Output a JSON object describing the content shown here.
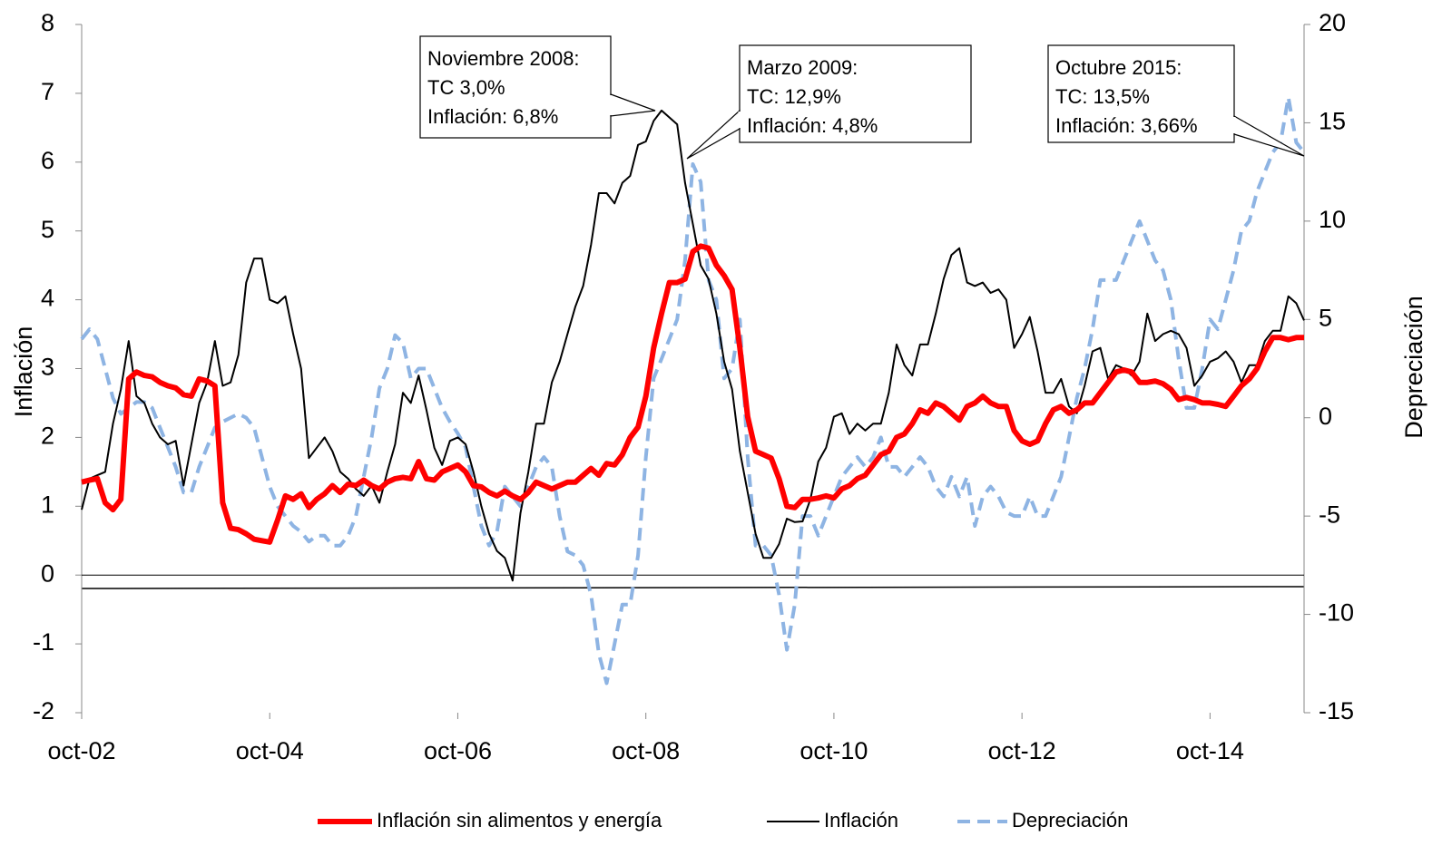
{
  "chart_data": {
    "type": "line",
    "y_label": "Inflación",
    "y2_label": "Depreciación",
    "categories": [
      "oct-02",
      null,
      null,
      null,
      null,
      null,
      null,
      null,
      null,
      null,
      null,
      null,
      null,
      null,
      null,
      null,
      null,
      null,
      null,
      null,
      null,
      null,
      null,
      null,
      "oct-04",
      null,
      null,
      null,
      null,
      null,
      null,
      null,
      null,
      null,
      null,
      null,
      null,
      null,
      null,
      null,
      null,
      null,
      null,
      null,
      null,
      null,
      null,
      null,
      "oct-06",
      null,
      null,
      null,
      null,
      null,
      null,
      null,
      null,
      null,
      null,
      null,
      null,
      null,
      null,
      null,
      null,
      null,
      null,
      null,
      null,
      null,
      null,
      null,
      "oct-08",
      null,
      null,
      null,
      null,
      null,
      null,
      null,
      null,
      null,
      null,
      null,
      null,
      null,
      null,
      null,
      null,
      null,
      null,
      null,
      null,
      null,
      null,
      null,
      "oct-10",
      null,
      null,
      null,
      null,
      null,
      null,
      null,
      null,
      null,
      null,
      null,
      null,
      null,
      null,
      null,
      null,
      null,
      null,
      null,
      null,
      null,
      null,
      null,
      "oct-12",
      null,
      null,
      null,
      null,
      null,
      null,
      null,
      null,
      null,
      null,
      null,
      null,
      null,
      null,
      null,
      null,
      null,
      null,
      null,
      null,
      null,
      null,
      null,
      "oct-14",
      null,
      null,
      null,
      null,
      null,
      null,
      null,
      null,
      null,
      null,
      null,
      null
    ],
    "ylim": [
      -2,
      8
    ],
    "yticks": [
      -2,
      -1,
      0,
      1,
      2,
      3,
      4,
      5,
      6,
      7,
      8
    ],
    "y2lim": [
      -15,
      20
    ],
    "y2ticks": [
      -15,
      -10,
      -5,
      0,
      5,
      10,
      15,
      20
    ],
    "series": [
      {
        "name": "Inflación sin alimentos y energía",
        "color": "#ff0000",
        "values": [
          1.35,
          1.38,
          1.4,
          1.05,
          0.95,
          1.1,
          2.85,
          2.95,
          2.9,
          2.88,
          2.8,
          2.75,
          2.72,
          2.62,
          2.6,
          2.85,
          2.82,
          2.75,
          1.05,
          0.68,
          0.66,
          0.6,
          0.52,
          0.5,
          0.48,
          0.8,
          1.15,
          1.1,
          1.18,
          0.98,
          1.1,
          1.18,
          1.3,
          1.2,
          1.32,
          1.3,
          1.38,
          1.3,
          1.25,
          1.35,
          1.4,
          1.42,
          1.4,
          1.65,
          1.4,
          1.38,
          1.5,
          1.55,
          1.6,
          1.5,
          1.3,
          1.28,
          1.2,
          1.15,
          1.22,
          1.15,
          1.1,
          1.2,
          1.35,
          1.3,
          1.25,
          1.3,
          1.35,
          1.35,
          1.45,
          1.55,
          1.45,
          1.62,
          1.6,
          1.75,
          2.0,
          2.15,
          2.6,
          3.3,
          3.8,
          4.25,
          4.25,
          4.3,
          4.7,
          4.78,
          4.75,
          4.5,
          4.35,
          4.15,
          3.3,
          2.3,
          1.8,
          1.75,
          1.7,
          1.4,
          1.0,
          0.98,
          1.1,
          1.1,
          1.12,
          1.15,
          1.12,
          1.25,
          1.3,
          1.4,
          1.45,
          1.6,
          1.75,
          1.8,
          2.0,
          2.05,
          2.2,
          2.4,
          2.35,
          2.5,
          2.45,
          2.35,
          2.25,
          2.45,
          2.5,
          2.6,
          2.5,
          2.45,
          2.45,
          2.1,
          1.95,
          1.9,
          1.95,
          2.2,
          2.4,
          2.45,
          2.35,
          2.4,
          2.5,
          2.5,
          2.65,
          2.8,
          2.95,
          2.98,
          2.95,
          2.8,
          2.8,
          2.82,
          2.78,
          2.7,
          2.55,
          2.58,
          2.55,
          2.5,
          2.5,
          2.48,
          2.45,
          2.6,
          2.75,
          2.85,
          3.0,
          3.25,
          3.45,
          3.45,
          3.42,
          3.45,
          3.45
        ]
      },
      {
        "name": "Inflación",
        "color": "#000000",
        "values": [
          0.95,
          1.4,
          1.45,
          1.5,
          2.2,
          2.7,
          3.4,
          2.6,
          2.5,
          2.2,
          2.0,
          1.9,
          1.95,
          1.3,
          1.9,
          2.5,
          2.8,
          3.4,
          2.75,
          2.8,
          3.2,
          4.25,
          4.6,
          4.6,
          4.0,
          3.95,
          4.05,
          3.5,
          3.0,
          1.7,
          1.85,
          2.0,
          1.8,
          1.5,
          1.4,
          1.25,
          1.15,
          1.3,
          1.05,
          1.5,
          1.9,
          2.65,
          2.5,
          2.9,
          2.4,
          1.85,
          1.6,
          1.95,
          2.0,
          1.9,
          1.5,
          1.0,
          0.6,
          0.35,
          0.25,
          -0.08,
          0.9,
          1.5,
          2.2,
          2.2,
          2.8,
          3.1,
          3.5,
          3.9,
          4.2,
          4.8,
          5.55,
          5.55,
          5.4,
          5.7,
          5.8,
          6.25,
          6.3,
          6.6,
          6.75,
          6.65,
          6.55,
          5.7,
          5.1,
          4.5,
          4.3,
          3.8,
          3.1,
          2.7,
          1.8,
          1.2,
          0.6,
          0.25,
          0.25,
          0.45,
          0.82,
          0.77,
          0.78,
          1.1,
          1.65,
          1.85,
          2.3,
          2.35,
          2.05,
          2.2,
          2.1,
          2.2,
          2.2,
          2.65,
          3.35,
          3.05,
          2.9,
          3.35,
          3.35,
          3.8,
          4.3,
          4.65,
          4.75,
          4.25,
          4.2,
          4.25,
          4.1,
          4.15,
          4.0,
          3.3,
          3.5,
          3.75,
          3.25,
          2.65,
          2.65,
          2.85,
          2.45,
          2.35,
          2.75,
          3.25,
          3.3,
          2.85,
          3.05,
          3.0,
          2.9,
          3.1,
          3.8,
          3.4,
          3.5,
          3.55,
          3.5,
          3.3,
          2.75,
          2.9,
          3.1,
          3.15,
          3.25,
          3.1,
          2.8,
          3.05,
          3.05,
          3.4,
          3.55,
          3.55,
          4.05,
          3.95,
          3.7
        ]
      },
      {
        "name": "Depreciación",
        "color": "#8eb4e3",
        "axis": "y2",
        "linestyle": "dashed",
        "values": [
          4.0,
          4.5,
          4.0,
          2.5,
          1.0,
          0.2,
          0.5,
          0.8,
          0.8,
          0.5,
          -0.5,
          -1.5,
          -2.5,
          -3.8,
          -3.8,
          -2.5,
          -1.5,
          -0.5,
          -0.2,
          0.0,
          0.2,
          0.0,
          -0.5,
          -2.0,
          -3.5,
          -4.5,
          -5.0,
          -5.5,
          -5.8,
          -6.3,
          -6.0,
          -6.0,
          -6.5,
          -6.5,
          -6.0,
          -5.0,
          -3.0,
          -1.0,
          1.5,
          2.5,
          4.2,
          3.8,
          2.0,
          2.5,
          2.5,
          1.5,
          0.5,
          -0.2,
          -0.8,
          -1.5,
          -3.5,
          -5.5,
          -6.5,
          -5.8,
          -3.5,
          -4.0,
          -4.5,
          -3.5,
          -2.5,
          -2.0,
          -2.5,
          -5.0,
          -6.8,
          -7.0,
          -7.5,
          -9.0,
          -12.0,
          -13.5,
          -11.5,
          -9.5,
          -9.5,
          -7.0,
          -2.0,
          2.0,
          3.0,
          4.0,
          5.0,
          8.0,
          12.9,
          12.0,
          7.0,
          6.0,
          2.0,
          2.5,
          5.0,
          -2.0,
          -6.5,
          -6.5,
          -7.0,
          -9.0,
          -11.8,
          -9.5,
          -5.0,
          -5.0,
          -6.0,
          -5.0,
          -4.0,
          -3.0,
          -2.5,
          -2.0,
          -2.5,
          -2.0,
          -1.0,
          -2.5,
          -2.5,
          -3.0,
          -2.5,
          -2.0,
          -2.5,
          -3.5,
          -4.0,
          -3.0,
          -4.0,
          -3.0,
          -5.5,
          -4.0,
          -3.5,
          -4.0,
          -4.8,
          -5.0,
          -5.0,
          -4.0,
          -5.0,
          -5.0,
          -4.0,
          -3.0,
          -1.0,
          1.0,
          2.5,
          4.5,
          7.0,
          7.0,
          7.0,
          8.0,
          9.0,
          10.0,
          9.0,
          8.0,
          7.5,
          6.0,
          3.0,
          0.5,
          0.5,
          2.5,
          5.0,
          4.5,
          6.0,
          7.5,
          9.5,
          10.0,
          11.5,
          12.5,
          13.5,
          14.0,
          16.3,
          14.0,
          13.5
        ]
      }
    ],
    "annotations": [
      {
        "lines": [
          "Noviembre 2008:",
          "TC 3,0%",
          "Inflación: 6,8%"
        ]
      },
      {
        "lines": [
          "Marzo 2009:",
          "TC: 12,9%",
          "Inflación: 4,8%"
        ]
      },
      {
        "lines": [
          "Octubre 2015:",
          "TC: 13,5%",
          "Inflación: 3,66%"
        ]
      }
    ]
  }
}
